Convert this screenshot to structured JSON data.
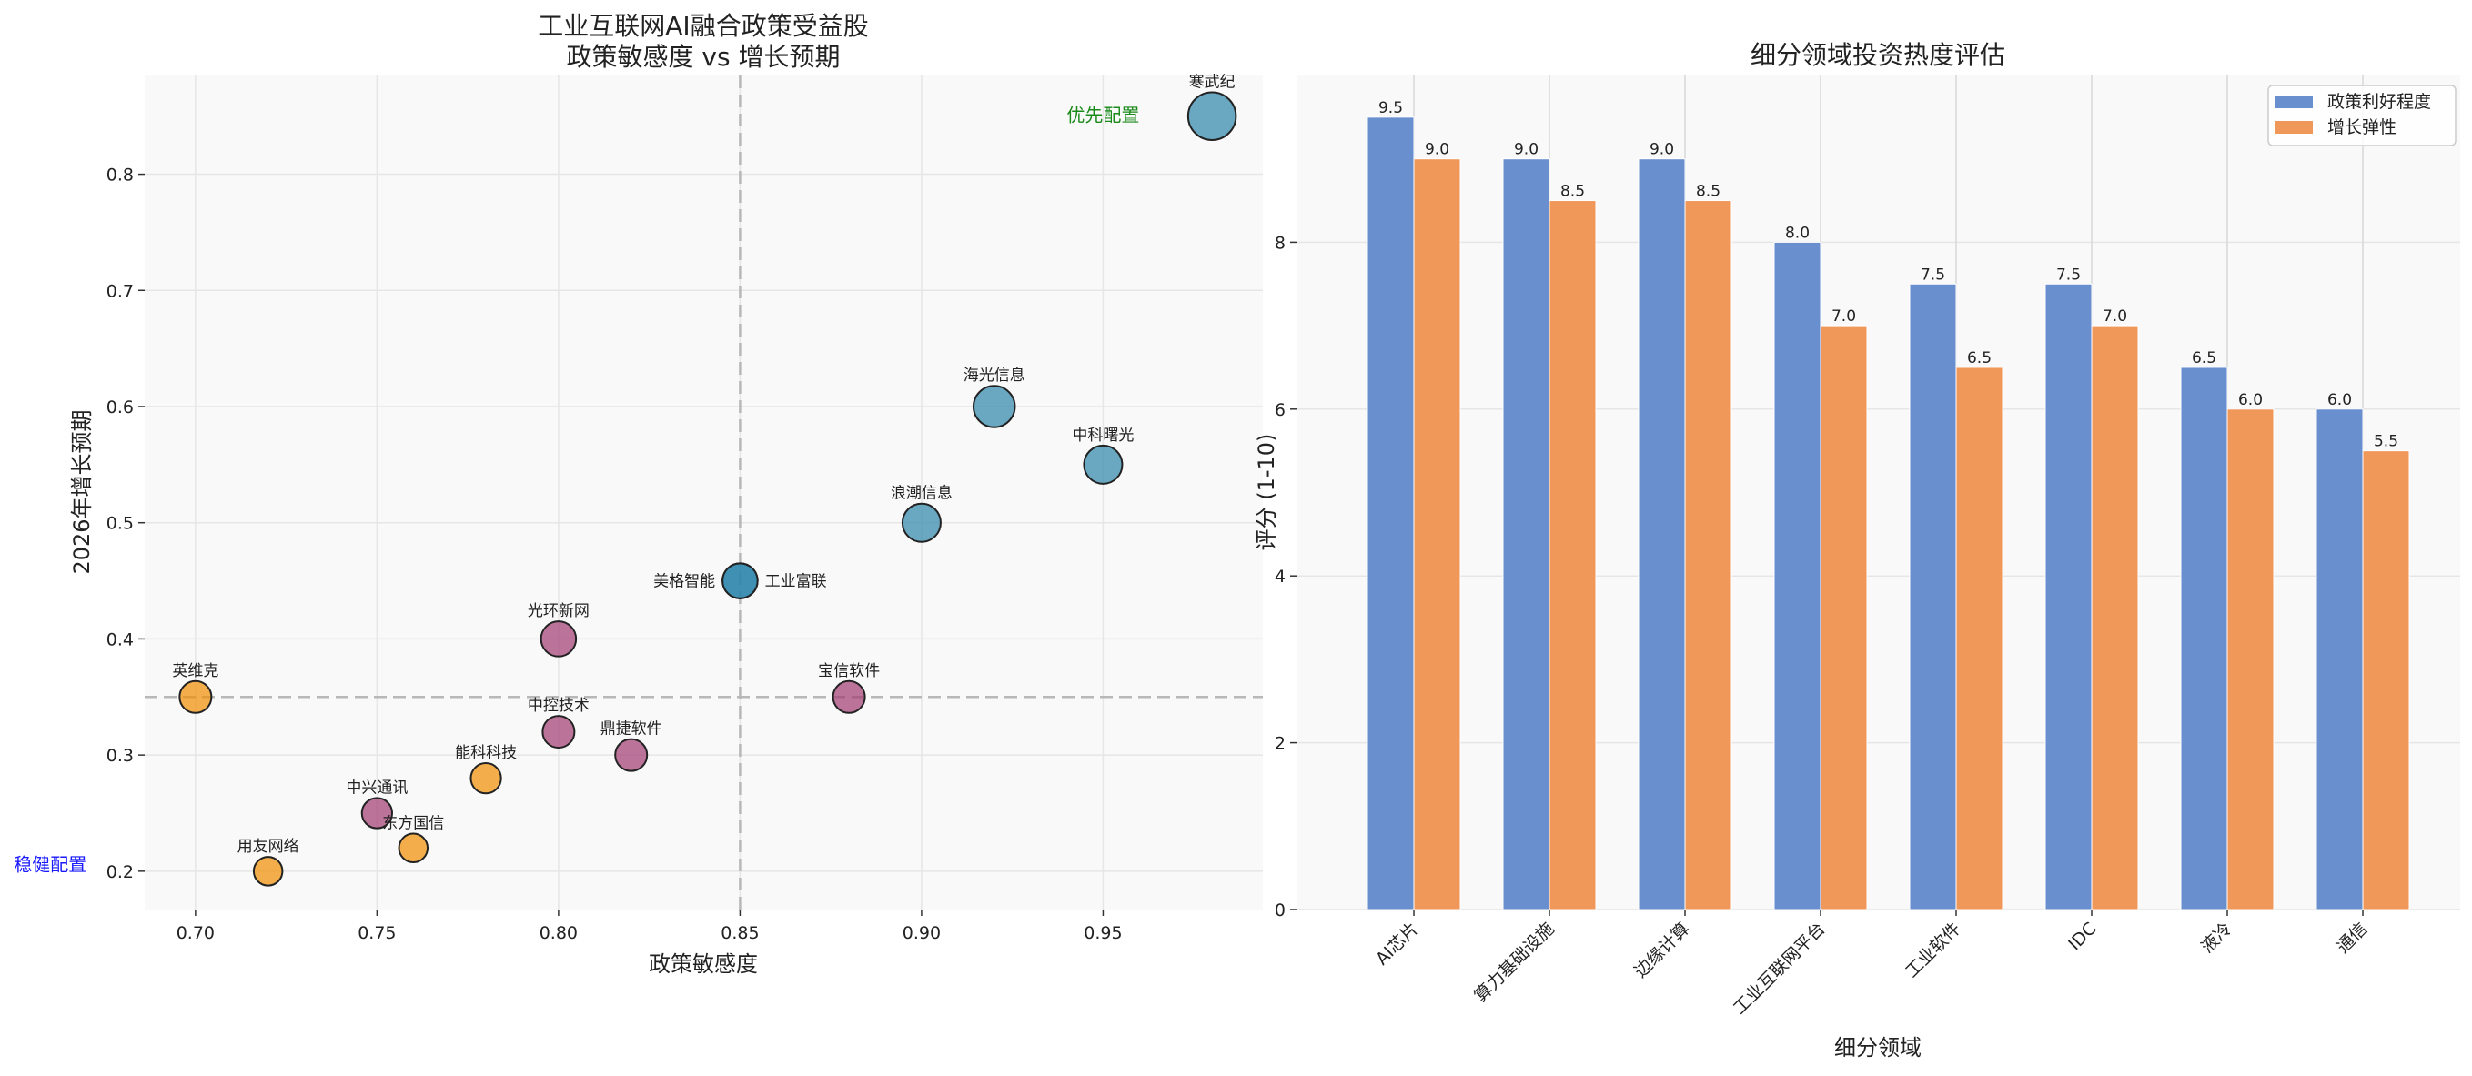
{
  "chart_data": [
    {
      "type": "scatter",
      "title": "工业互联网AI融合政策受益股",
      "subtitle": "政策敏感度 vs 增长预期",
      "xlabel": "政策敏感度",
      "ylabel": "2026年增长预期",
      "xlim": [
        0.686,
        0.994
      ],
      "ylim": [
        0.167,
        0.885
      ],
      "xticks": [
        0.7,
        0.75,
        0.8,
        0.85,
        0.9,
        0.95
      ],
      "yticks": [
        0.2,
        0.3,
        0.4,
        0.5,
        0.6,
        0.7,
        0.8
      ],
      "grid": true,
      "reference_lines": {
        "x": 0.85,
        "y": 0.35,
        "style": "dashed",
        "color": "#b8b8b8"
      },
      "annotations": [
        {
          "text": "优先配置",
          "x": 0.95,
          "y": 0.85,
          "color": "#1a8a1a"
        },
        {
          "text": "稳健配置",
          "x": 0.66,
          "y": 0.205,
          "color": "#1a1aff"
        }
      ],
      "group_colors": {
        "high": "#2E86AB",
        "mid": "#A23B72",
        "low": "#F18F01"
      },
      "points": [
        {
          "label": "寒武纪",
          "x": 0.98,
          "y": 0.85,
          "group": "high",
          "size": 15
        },
        {
          "label": "海光信息",
          "x": 0.92,
          "y": 0.6,
          "group": "high",
          "size": 13
        },
        {
          "label": "中科曙光",
          "x": 0.95,
          "y": 0.55,
          "group": "high",
          "size": 12
        },
        {
          "label": "浪潮信息",
          "x": 0.9,
          "y": 0.5,
          "group": "high",
          "size": 12
        },
        {
          "label": "美格智能",
          "x": 0.85,
          "y": 0.45,
          "group": "high",
          "size": 11
        },
        {
          "label": "工业富联",
          "x": 0.85,
          "y": 0.45,
          "group": "high",
          "size": 11
        },
        {
          "label": "光环新网",
          "x": 0.8,
          "y": 0.4,
          "group": "mid",
          "size": 11
        },
        {
          "label": "宝信软件",
          "x": 0.88,
          "y": 0.35,
          "group": "mid",
          "size": 10
        },
        {
          "label": "中控技术",
          "x": 0.8,
          "y": 0.32,
          "group": "mid",
          "size": 10
        },
        {
          "label": "鼎捷软件",
          "x": 0.82,
          "y": 0.3,
          "group": "mid",
          "size": 10
        },
        {
          "label": "中兴通讯",
          "x": 0.75,
          "y": 0.25,
          "group": "mid",
          "size": 9.5
        },
        {
          "label": "英维克",
          "x": 0.7,
          "y": 0.35,
          "group": "low",
          "size": 10
        },
        {
          "label": "能科科技",
          "x": 0.78,
          "y": 0.28,
          "group": "low",
          "size": 9.5
        },
        {
          "label": "东方国信",
          "x": 0.76,
          "y": 0.22,
          "group": "low",
          "size": 9
        },
        {
          "label": "用友网络",
          "x": 0.72,
          "y": 0.2,
          "group": "low",
          "size": 9
        }
      ]
    },
    {
      "type": "bar",
      "title": "细分领域投资热度评估",
      "xlabel": "细分领域",
      "ylabel": "评分 (1-10)",
      "ylim": [
        0,
        10
      ],
      "yticks": [
        0,
        2,
        4,
        6,
        8
      ],
      "grid": true,
      "legend": "top-right",
      "categories": [
        "AI芯片",
        "算力基础设施",
        "边缘计算",
        "工业互联网平台",
        "工业软件",
        "IDC",
        "液冷",
        "通信"
      ],
      "series": [
        {
          "name": "政策利好程度",
          "color": "#6A8FCF",
          "values": [
            9.5,
            9.0,
            9.0,
            8.0,
            7.5,
            7.5,
            6.5,
            6.0
          ]
        },
        {
          "name": "增长弹性",
          "color": "#F0975A",
          "values": [
            9.0,
            8.5,
            8.5,
            7.0,
            6.5,
            7.0,
            6.0,
            5.5
          ]
        }
      ]
    }
  ]
}
